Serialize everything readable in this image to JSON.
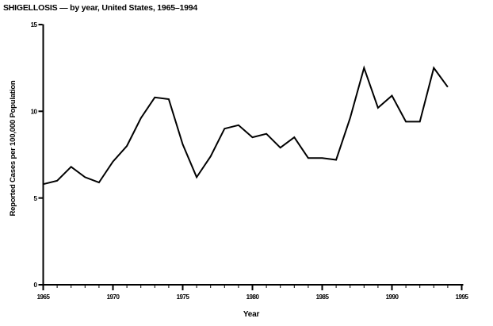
{
  "page": {
    "background_color": "#ffffff",
    "foreground_color": "#000000"
  },
  "chart_data": {
    "type": "line",
    "title": "SHIGELLOSIS — by year, United States, 1965–1994",
    "xlabel": "Year",
    "ylabel": "Reported Cases per 100,000 Population",
    "x": [
      1965,
      1966,
      1967,
      1968,
      1969,
      1970,
      1971,
      1972,
      1973,
      1974,
      1975,
      1976,
      1977,
      1978,
      1979,
      1980,
      1981,
      1982,
      1983,
      1984,
      1985,
      1986,
      1987,
      1988,
      1989,
      1990,
      1991,
      1992,
      1993,
      1994
    ],
    "values": [
      5.8,
      6.0,
      6.8,
      6.2,
      5.9,
      7.1,
      8.0,
      9.6,
      10.8,
      10.7,
      8.1,
      6.2,
      7.4,
      9.0,
      9.2,
      8.5,
      8.7,
      7.9,
      8.5,
      7.3,
      7.3,
      7.2,
      9.6,
      12.5,
      10.2,
      10.9,
      9.4,
      9.4,
      12.5,
      11.4
    ],
    "xlim": [
      1965,
      1995
    ],
    "ylim": [
      0,
      15
    ],
    "xticks_major": [
      1965,
      1970,
      1975,
      1980,
      1985,
      1990,
      1995
    ],
    "xticks_minor_step": 1,
    "yticks": [
      0,
      5,
      10,
      15
    ],
    "ytick_labels": [
      "0",
      "5",
      "10",
      "15"
    ],
    "xtick_labels": [
      "1965",
      "1970",
      "1975",
      "1980",
      "1985",
      "1990",
      "1995"
    ],
    "grid": false,
    "legend": "none",
    "line_color": "#000000",
    "background": "#ffffff"
  }
}
